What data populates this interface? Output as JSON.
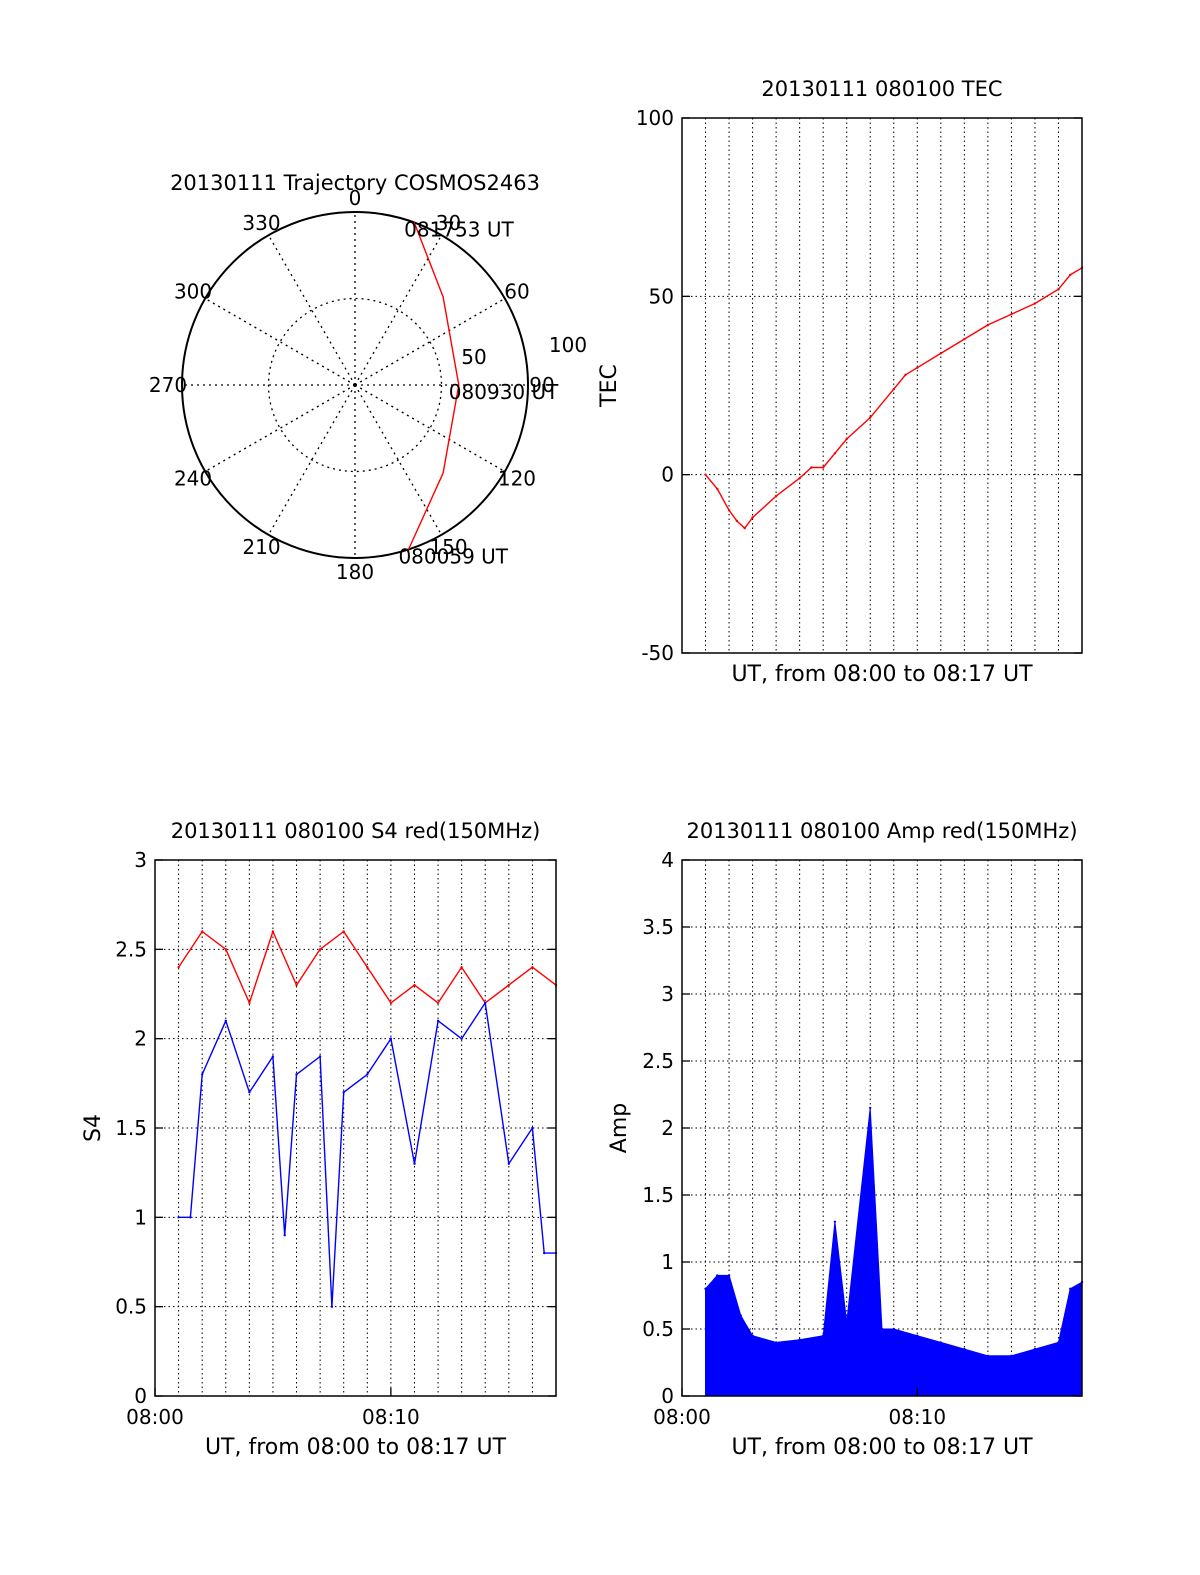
{
  "colors": {
    "red": "#ff0000",
    "blue": "#0000ff",
    "axis": "#000000",
    "grid": "#000000"
  },
  "chart_data": [
    {
      "type": "polar",
      "title": "20130111 Trajectory COSMOS2463",
      "angle_labels": [
        "0",
        "30",
        "60",
        "90",
        "120",
        "150",
        "180",
        "210",
        "240",
        "270",
        "300",
        "330"
      ],
      "radius_labels": [
        "50",
        "100"
      ],
      "rlim": [
        0,
        100
      ],
      "grid": true,
      "series": [
        {
          "color": "#ff0000",
          "points": [
            {
              "az": 20,
              "r": 100
            },
            {
              "az": 45,
              "r": 72
            },
            {
              "az": 90,
              "r": 60
            },
            {
              "az": 135,
              "r": 72
            },
            {
              "az": 162,
              "r": 100
            }
          ]
        }
      ],
      "annotations": [
        {
          "text": "081753 UT",
          "az": 20,
          "r": 100
        },
        {
          "text": "080930 UT",
          "az": 90,
          "r": 60
        },
        {
          "text": "080059 UT",
          "az": 162,
          "r": 100
        }
      ]
    },
    {
      "type": "line",
      "title": "20130111 080100 TEC",
      "xlabel": "UT, from 08:00 to 08:17 UT",
      "ylabel": "TEC",
      "xlim": [
        "08:00",
        "08:17"
      ],
      "ylim": [
        -50,
        100
      ],
      "yticks": [
        "-50",
        "0",
        "50",
        "100"
      ],
      "grid": true,
      "series": [
        {
          "color": "#ff0000",
          "points": [
            [
              "08:01:00",
              0
            ],
            [
              "08:01:30",
              -4
            ],
            [
              "08:02:00",
              -10
            ],
            [
              "08:02:20",
              -13
            ],
            [
              "08:02:40",
              -15
            ],
            [
              "08:03:00",
              -12
            ],
            [
              "08:04:00",
              -6
            ],
            [
              "08:05:00",
              -1
            ],
            [
              "08:05:30",
              2
            ],
            [
              "08:06:00",
              2
            ],
            [
              "08:06:30",
              6
            ],
            [
              "08:07:00",
              10
            ],
            [
              "08:08:00",
              16
            ],
            [
              "08:09:00",
              24
            ],
            [
              "08:09:30",
              28
            ],
            [
              "08:10:00",
              30
            ],
            [
              "08:11:00",
              34
            ],
            [
              "08:12:00",
              38
            ],
            [
              "08:13:00",
              42
            ],
            [
              "08:14:00",
              45
            ],
            [
              "08:15:00",
              48
            ],
            [
              "08:16:00",
              52
            ],
            [
              "08:16:30",
              56
            ],
            [
              "08:17:00",
              58
            ]
          ]
        }
      ]
    },
    {
      "type": "line",
      "title": "20130111 080100 S4 red(150MHz)",
      "xlabel": "UT, from 08:00 to 08:17 UT",
      "ylabel": "S4",
      "xlim": [
        "08:00",
        "08:17"
      ],
      "xticks": [
        "08:00",
        "08:10"
      ],
      "ylim": [
        0,
        3
      ],
      "yticks": [
        "0",
        "0.5",
        "1",
        "1.5",
        "2",
        "2.5",
        "3"
      ],
      "grid": true,
      "series": [
        {
          "color": "#ff0000",
          "points": [
            [
              "08:01:00",
              2.4
            ],
            [
              "08:02:00",
              2.6
            ],
            [
              "08:03:00",
              2.5
            ],
            [
              "08:04:00",
              2.2
            ],
            [
              "08:05:00",
              2.6
            ],
            [
              "08:06:00",
              2.3
            ],
            [
              "08:07:00",
              2.5
            ],
            [
              "08:08:00",
              2.6
            ],
            [
              "08:09:00",
              2.4
            ],
            [
              "08:10:00",
              2.2
            ],
            [
              "08:11:00",
              2.3
            ],
            [
              "08:12:00",
              2.2
            ],
            [
              "08:13:00",
              2.4
            ],
            [
              "08:14:00",
              2.2
            ],
            [
              "08:15:00",
              2.3
            ],
            [
              "08:16:00",
              2.4
            ],
            [
              "08:17:00",
              2.3
            ]
          ]
        },
        {
          "color": "#0000ff",
          "points": [
            [
              "08:01:00",
              1.0
            ],
            [
              "08:01:30",
              1.0
            ],
            [
              "08:02:00",
              1.8
            ],
            [
              "08:03:00",
              2.1
            ],
            [
              "08:04:00",
              1.7
            ],
            [
              "08:05:00",
              1.9
            ],
            [
              "08:05:30",
              0.9
            ],
            [
              "08:06:00",
              1.8
            ],
            [
              "08:07:00",
              1.9
            ],
            [
              "08:07:30",
              0.5
            ],
            [
              "08:08:00",
              1.7
            ],
            [
              "08:09:00",
              1.8
            ],
            [
              "08:10:00",
              2.0
            ],
            [
              "08:11:00",
              1.3
            ],
            [
              "08:12:00",
              2.1
            ],
            [
              "08:13:00",
              2.0
            ],
            [
              "08:14:00",
              2.2
            ],
            [
              "08:15:00",
              1.3
            ],
            [
              "08:16:00",
              1.5
            ],
            [
              "08:16:30",
              0.8
            ],
            [
              "08:17:00",
              0.8
            ]
          ]
        }
      ]
    },
    {
      "type": "line",
      "title": "20130111 080100 Amp red(150MHz)",
      "xlabel": "UT, from 08:00 to 08:17 UT",
      "ylabel": "Amp",
      "xlim": [
        "08:00",
        "08:17"
      ],
      "xticks": [
        "08:00",
        "08:10"
      ],
      "ylim": [
        0,
        4
      ],
      "yticks": [
        "0",
        "0.5",
        "1",
        "1.5",
        "2",
        "2.5",
        "3",
        "3.5",
        "4"
      ],
      "grid": true,
      "series": [
        {
          "color": "#0000ff",
          "points": [
            [
              "08:01:00",
              0.8
            ],
            [
              "08:01:30",
              0.9
            ],
            [
              "08:02:00",
              0.9
            ],
            [
              "08:02:30",
              0.6
            ],
            [
              "08:03:00",
              0.45
            ],
            [
              "08:04:00",
              0.4
            ],
            [
              "08:05:00",
              0.42
            ],
            [
              "08:06:00",
              0.45
            ],
            [
              "08:06:30",
              1.3
            ],
            [
              "08:07:00",
              0.55
            ],
            [
              "08:08:00",
              2.15
            ],
            [
              "08:08:30",
              0.5
            ],
            [
              "08:09:00",
              0.5
            ],
            [
              "08:10:00",
              0.45
            ],
            [
              "08:11:00",
              0.4
            ],
            [
              "08:12:00",
              0.35
            ],
            [
              "08:13:00",
              0.3
            ],
            [
              "08:14:00",
              0.3
            ],
            [
              "08:15:00",
              0.35
            ],
            [
              "08:16:00",
              0.4
            ],
            [
              "08:16:30",
              0.8
            ],
            [
              "08:17:00",
              0.85
            ]
          ]
        }
      ]
    }
  ]
}
